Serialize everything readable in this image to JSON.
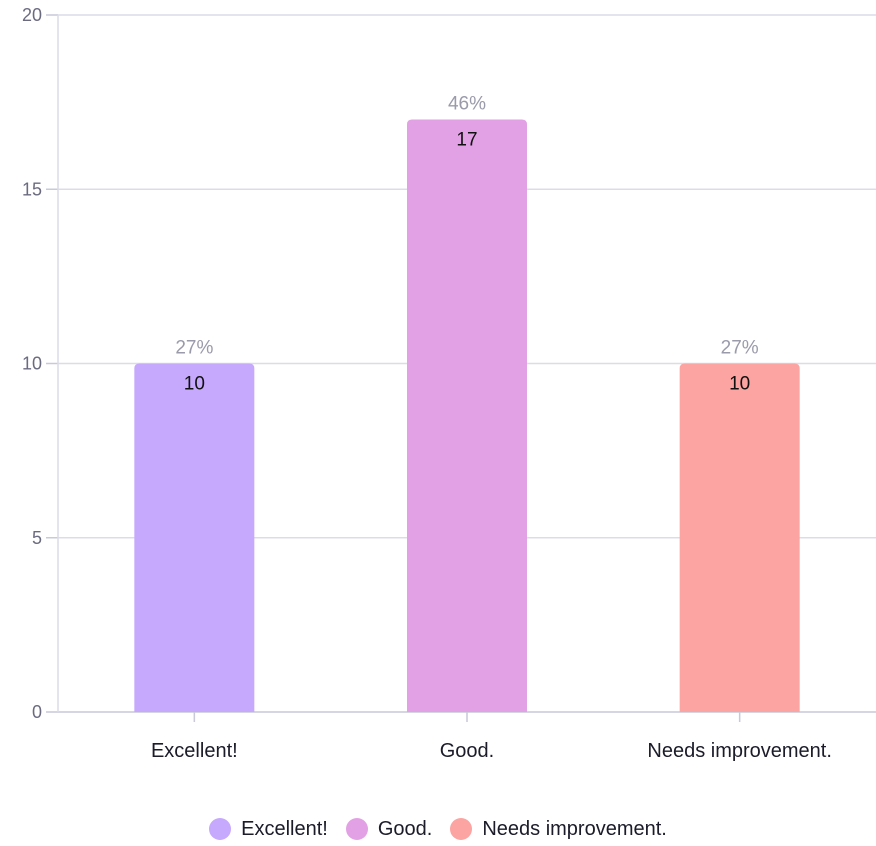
{
  "chart_data": {
    "type": "bar",
    "categories": [
      "Excellent!",
      "Good.",
      "Needs improvement."
    ],
    "values": [
      10,
      17,
      10
    ],
    "percent_labels": [
      "27%",
      "46%",
      "27%"
    ],
    "colors": [
      "#c6a8fd",
      "#e2a1e4",
      "#fba4a1"
    ],
    "ylim": [
      0,
      20
    ],
    "yticks": [
      "0",
      "5",
      "10",
      "15",
      "20"
    ],
    "grid": true,
    "legend_position": "bottom-center",
    "title": "",
    "xlabel": "",
    "ylabel": ""
  },
  "legend": {
    "items": [
      {
        "label": "Excellent!",
        "color": "#c6a8fd"
      },
      {
        "label": "Good.",
        "color": "#e2a1e4"
      },
      {
        "label": "Needs improvement.",
        "color": "#fba4a1"
      }
    ]
  }
}
